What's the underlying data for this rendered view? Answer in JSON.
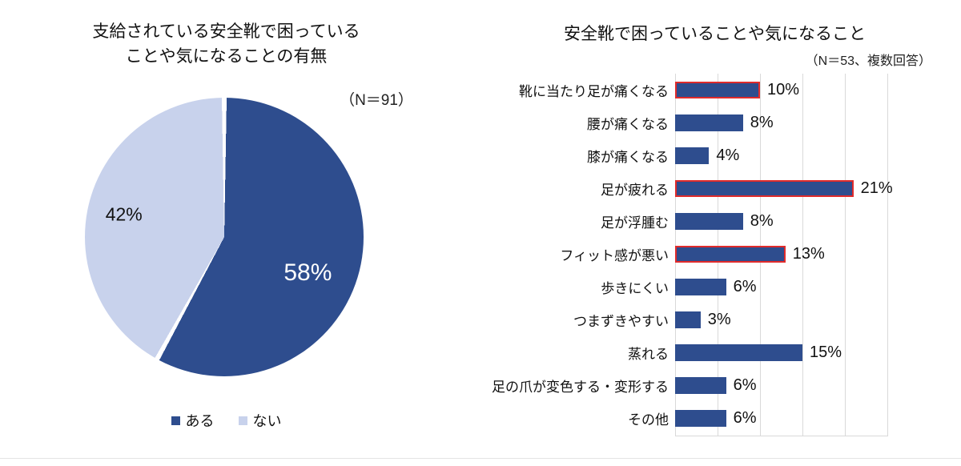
{
  "colors": {
    "bar": "#2e4d8e",
    "pie_dark": "#2e4d8e",
    "pie_light": "#c8d2ec",
    "highlight": "#e02b2b",
    "grid": "#d9d9d9"
  },
  "pie": {
    "title_line1": "支給されている安全靴で困っている",
    "title_line2": "ことや気になることの有無",
    "n_label": "（N＝91）",
    "slices": [
      {
        "label": "ある",
        "value": 58,
        "pct_label": "58%",
        "color": "#2e4d8e"
      },
      {
        "label": "ない",
        "value": 42,
        "pct_label": "42%",
        "color": "#c8d2ec"
      }
    ]
  },
  "bars": {
    "title": "安全靴で困っていることや気になること",
    "n_label": "（N＝53、複数回答）",
    "axis": {
      "min": 0,
      "max": 25,
      "grid_step": 5
    },
    "items": [
      {
        "label": "靴に当たり足が痛くなる",
        "value": 10,
        "value_label": "10%",
        "highlighted": true
      },
      {
        "label": "腰が痛くなる",
        "value": 8,
        "value_label": "8%",
        "highlighted": false
      },
      {
        "label": "膝が痛くなる",
        "value": 4,
        "value_label": "4%",
        "highlighted": false
      },
      {
        "label": "足が疲れる",
        "value": 21,
        "value_label": "21%",
        "highlighted": true
      },
      {
        "label": "足が浮腫む",
        "value": 8,
        "value_label": "8%",
        "highlighted": false
      },
      {
        "label": "フィット感が悪い",
        "value": 13,
        "value_label": "13%",
        "highlighted": true
      },
      {
        "label": "歩きにくい",
        "value": 6,
        "value_label": "6%",
        "highlighted": false
      },
      {
        "label": "つまずきやすい",
        "value": 3,
        "value_label": "3%",
        "highlighted": false
      },
      {
        "label": "蒸れる",
        "value": 15,
        "value_label": "15%",
        "highlighted": false
      },
      {
        "label": "足の爪が変色する・変形する",
        "value": 6,
        "value_label": "6%",
        "highlighted": false
      },
      {
        "label": "その他",
        "value": 6,
        "value_label": "6%",
        "highlighted": false
      }
    ]
  },
  "chart_data": [
    {
      "type": "pie",
      "title": "支給されている安全靴で困っていることや気になることの有無",
      "n": "N＝91",
      "labels": [
        "ある",
        "ない"
      ],
      "values": [
        58,
        42
      ],
      "colors": [
        "#2e4d8e",
        "#c8d2ec"
      ],
      "legend_position": "bottom",
      "start_angle": "12 o'clock, clockwise, ある first"
    },
    {
      "type": "bar",
      "orientation": "horizontal",
      "title": "安全靴で困っていることや気になること",
      "n": "N＝53、複数回答",
      "categories": [
        "靴に当たり足が痛くなる",
        "腰が痛くなる",
        "膝が痛くなる",
        "足が疲れる",
        "足が浮腫む",
        "フィット感が悪い",
        "歩きにくい",
        "つまずきやすい",
        "蒸れる",
        "足の爪が変色する・変形する",
        "その他"
      ],
      "values": [
        10,
        8,
        4,
        21,
        8,
        13,
        6,
        3,
        15,
        6,
        6
      ],
      "highlighted_categories": [
        "靴に当たり足が痛くなる",
        "足が疲れる",
        "フィット感が悪い"
      ],
      "bar_color": "#2e4d8e",
      "highlight_border_color": "#e02b2b",
      "xlim": [
        0,
        25
      ],
      "grid": true,
      "data_labels": "percent at bar end"
    }
  ]
}
